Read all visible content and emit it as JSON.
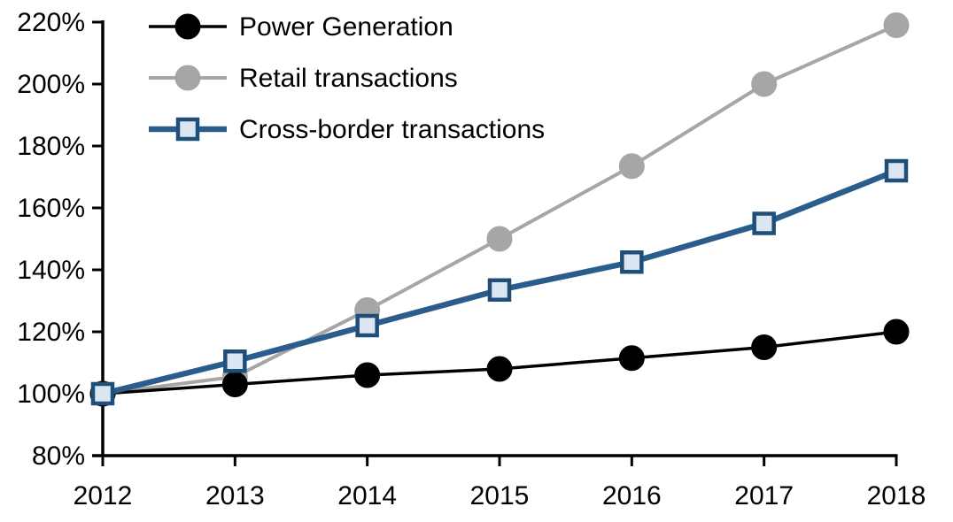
{
  "chart_data": {
    "type": "line",
    "title": "",
    "xlabel": "",
    "ylabel": "",
    "grid": false,
    "legend_position": "top-left",
    "background": "#ffffff",
    "axis_color": "#000000",
    "x": [
      2012,
      2013,
      2014,
      2015,
      2016,
      2017,
      2018
    ],
    "x_tick_labels": [
      "2012",
      "2013",
      "2014",
      "2015",
      "2016",
      "2017",
      "2018"
    ],
    "y_axis": {
      "min": 80,
      "max": 220,
      "step": 20,
      "tick_labels": [
        "80%",
        "100%",
        "120%",
        "140%",
        "160%",
        "180%",
        "200%",
        "220%"
      ],
      "unit": "%"
    },
    "draw_order": [
      1,
      0,
      2
    ],
    "series": [
      {
        "name": "Power Generation",
        "marker": "circle",
        "line_color": "#000000",
        "marker_fill": "#000000",
        "marker_stroke": "#000000",
        "line_width": 3.5,
        "marker_size": 28,
        "values": [
          100,
          103,
          106,
          108,
          111.5,
          115,
          120
        ]
      },
      {
        "name": "Retail transactions",
        "marker": "circle",
        "line_color": "#a6a6a6",
        "marker_fill": "#a6a6a6",
        "marker_stroke": "#a6a6a6",
        "line_width": 4,
        "marker_size": 28,
        "values": [
          100,
          105.5,
          127,
          150,
          173.5,
          200,
          219
        ]
      },
      {
        "name": "Cross-border transactions",
        "marker": "square",
        "line_color": "#2a5d8c",
        "marker_fill": "#dce6f2",
        "marker_stroke": "#1f4e79",
        "line_width": 6.5,
        "marker_size": 26,
        "values": [
          100,
          110.5,
          122,
          133.5,
          142.5,
          155,
          172
        ]
      }
    ]
  }
}
